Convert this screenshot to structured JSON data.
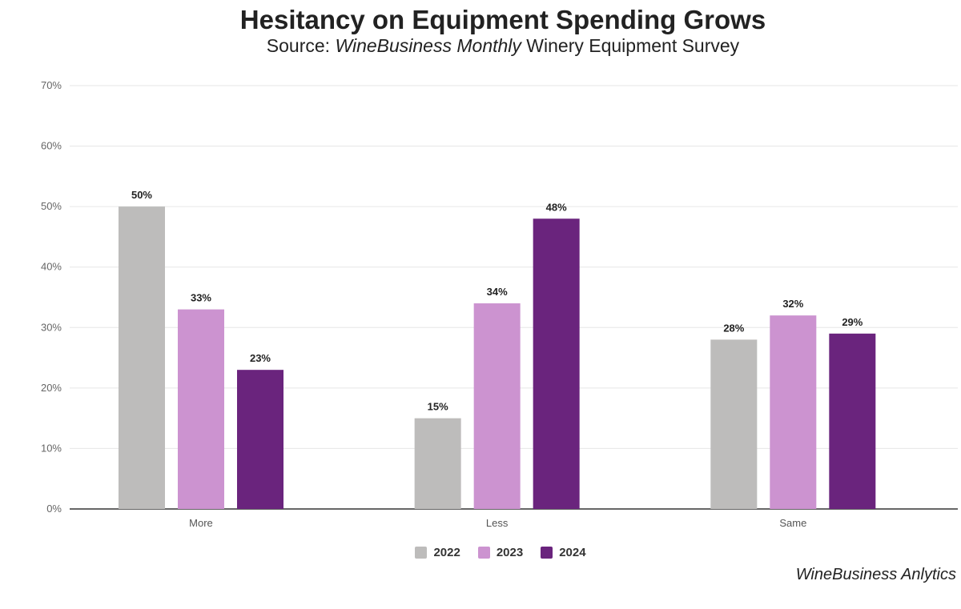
{
  "header": {
    "title": "Hesitancy on Equipment Spending Grows",
    "subtitle_prefix": "Source: ",
    "subtitle_italic": "WineBusiness Monthly",
    "subtitle_suffix": " Winery Equipment Survey"
  },
  "footer": {
    "credit": "WineBusiness Anlytics"
  },
  "chart_data": {
    "type": "bar",
    "title": "Hesitancy on Equipment Spending Grows",
    "subtitle": "Source: WineBusiness Monthly Winery Equipment Survey",
    "xlabel": "",
    "ylabel": "",
    "categories": [
      "More",
      "Less",
      "Same"
    ],
    "series": [
      {
        "name": "2022",
        "color": "#bdbcbb",
        "values": [
          50,
          15,
          28
        ]
      },
      {
        "name": "2023",
        "color": "#cc93d0",
        "values": [
          33,
          34,
          32
        ]
      },
      {
        "name": "2024",
        "color": "#6a247d",
        "values": [
          23,
          48,
          29
        ]
      }
    ],
    "ylim": [
      0,
      70
    ],
    "yticks": [
      0,
      10,
      20,
      30,
      40,
      50,
      60,
      70
    ],
    "tick_suffix": "%",
    "data_label_suffix": "%",
    "grid": true,
    "legend_position": "bottom-center"
  }
}
